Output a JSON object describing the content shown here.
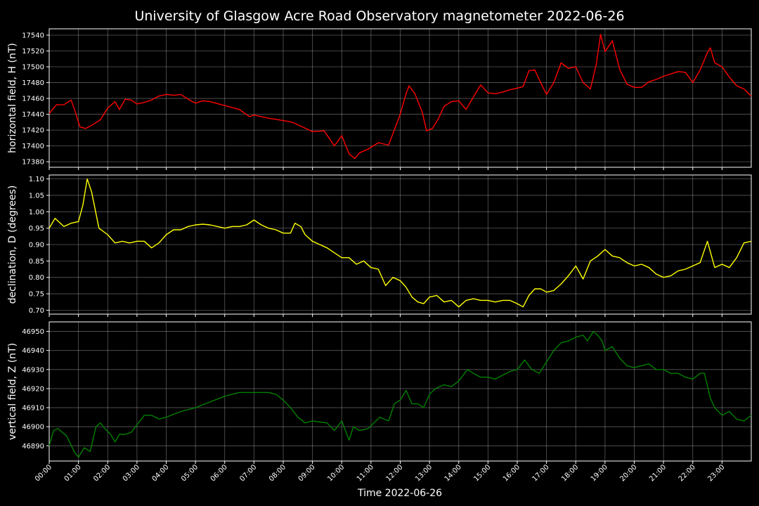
{
  "chart_data": {
    "type": "line",
    "title": "University of Glasgow Acre Road Observatory magnetometer 2022-06-26",
    "xlabel": "Time 2022-06-26",
    "x_tick_labels": [
      "00:00",
      "01:00",
      "02:00",
      "03:00",
      "04:00",
      "05:00",
      "06:00",
      "07:00",
      "08:00",
      "09:00",
      "10:00",
      "11:00",
      "12:00",
      "13:00",
      "14:00",
      "15:00",
      "16:00",
      "17:00",
      "18:00",
      "19:00",
      "20:00",
      "21:00",
      "22:00",
      "23:00"
    ],
    "x_unit": "hours",
    "xlim": [
      0,
      24
    ],
    "grid": true,
    "panels": [
      {
        "ylabel": "horizontal field, H (nT)",
        "color": "#ff0000",
        "ylim": [
          17373,
          17548
        ],
        "yticks": [
          17380,
          17400,
          17420,
          17440,
          17460,
          17480,
          17500,
          17520,
          17540
        ],
        "tick_decimals": 0,
        "x": [
          0,
          0.25,
          0.5,
          0.75,
          0.9,
          1.05,
          1.25,
          1.5,
          1.75,
          2.0,
          2.25,
          2.4,
          2.6,
          2.8,
          3.0,
          3.25,
          3.5,
          3.75,
          4.0,
          4.25,
          4.5,
          4.75,
          5.0,
          5.25,
          5.5,
          6.0,
          6.5,
          6.85,
          7.0,
          7.5,
          8.0,
          8.3,
          8.6,
          9.0,
          9.4,
          9.75,
          10.0,
          10.25,
          10.45,
          10.6,
          10.9,
          11.25,
          11.6,
          12.0,
          12.2,
          12.3,
          12.5,
          12.75,
          12.9,
          13.1,
          13.3,
          13.5,
          13.75,
          14.0,
          14.25,
          14.5,
          14.75,
          15.0,
          15.25,
          15.5,
          15.75,
          16.0,
          16.2,
          16.4,
          16.6,
          16.75,
          17.0,
          17.25,
          17.5,
          17.75,
          18.0,
          18.25,
          18.5,
          18.7,
          18.85,
          19.0,
          19.25,
          19.5,
          19.75,
          20.0,
          20.25,
          20.5,
          20.75,
          21.0,
          21.25,
          21.5,
          21.75,
          22.0,
          22.25,
          22.5,
          22.6,
          22.75,
          23.0,
          23.25,
          23.5,
          23.75,
          24.0
        ],
        "y": [
          17441,
          17452,
          17452,
          17458,
          17442,
          17424,
          17422,
          17427,
          17433,
          17448,
          17456,
          17446,
          17459,
          17458,
          17453,
          17455,
          17458,
          17463,
          17465,
          17464,
          17465,
          17459,
          17454,
          17457,
          17456,
          17451,
          17446,
          17437,
          17439,
          17435,
          17432,
          17430,
          17425,
          17418,
          17419,
          17400,
          17413,
          17390,
          17384,
          17391,
          17396,
          17404,
          17401,
          17440,
          17466,
          17476,
          17466,
          17443,
          17419,
          17422,
          17434,
          17450,
          17456,
          17457,
          17446,
          17462,
          17477,
          17467,
          17466,
          17468,
          17471,
          17473,
          17475,
          17495,
          17496,
          17484,
          17465,
          17480,
          17505,
          17498,
          17500,
          17480,
          17472,
          17503,
          17541,
          17519,
          17533,
          17497,
          17478,
          17474,
          17474,
          17481,
          17484,
          17488,
          17491,
          17494,
          17493,
          17480,
          17496,
          17518,
          17524,
          17505,
          17500,
          17487,
          17476,
          17472,
          17463
        ]
      },
      {
        "ylabel": "declination, D (degrees)",
        "color": "#ffff00",
        "ylim": [
          0.688,
          1.112
        ],
        "yticks": [
          0.7,
          0.75,
          0.8,
          0.85,
          0.9,
          0.95,
          1.0,
          1.05,
          1.1
        ],
        "tick_decimals": 2,
        "x": [
          0,
          0.2,
          0.5,
          0.75,
          1.0,
          1.15,
          1.3,
          1.45,
          1.7,
          2.0,
          2.25,
          2.5,
          2.75,
          3.0,
          3.25,
          3.5,
          3.75,
          4.0,
          4.25,
          4.5,
          4.75,
          5.0,
          5.25,
          5.5,
          5.75,
          6.0,
          6.25,
          6.5,
          6.75,
          7.0,
          7.25,
          7.5,
          7.75,
          8.0,
          8.25,
          8.4,
          8.6,
          8.75,
          9.0,
          9.25,
          9.5,
          9.75,
          10.0,
          10.25,
          10.5,
          10.75,
          11.0,
          11.25,
          11.5,
          11.75,
          12.0,
          12.2,
          12.4,
          12.6,
          12.8,
          13.0,
          13.25,
          13.5,
          13.75,
          14.0,
          14.25,
          14.5,
          14.75,
          15.0,
          15.25,
          15.5,
          15.75,
          16.0,
          16.2,
          16.4,
          16.6,
          16.8,
          17.0,
          17.25,
          17.5,
          17.75,
          18.0,
          18.25,
          18.5,
          18.75,
          19.0,
          19.25,
          19.5,
          19.75,
          20.0,
          20.25,
          20.5,
          20.75,
          21.0,
          21.25,
          21.5,
          21.75,
          22.0,
          22.25,
          22.5,
          22.75,
          23.0,
          23.25,
          23.5,
          23.75,
          24.0
        ],
        "y": [
          0.95,
          0.98,
          0.955,
          0.965,
          0.97,
          1.02,
          1.1,
          1.06,
          0.95,
          0.93,
          0.905,
          0.91,
          0.905,
          0.91,
          0.91,
          0.89,
          0.905,
          0.93,
          0.945,
          0.945,
          0.955,
          0.96,
          0.962,
          0.96,
          0.955,
          0.95,
          0.955,
          0.955,
          0.96,
          0.975,
          0.96,
          0.95,
          0.945,
          0.935,
          0.935,
          0.965,
          0.955,
          0.93,
          0.91,
          0.9,
          0.89,
          0.875,
          0.86,
          0.86,
          0.84,
          0.85,
          0.83,
          0.825,
          0.775,
          0.8,
          0.79,
          0.77,
          0.74,
          0.725,
          0.72,
          0.74,
          0.745,
          0.725,
          0.73,
          0.71,
          0.73,
          0.735,
          0.73,
          0.73,
          0.725,
          0.73,
          0.73,
          0.72,
          0.71,
          0.745,
          0.765,
          0.765,
          0.755,
          0.76,
          0.78,
          0.805,
          0.835,
          0.795,
          0.85,
          0.865,
          0.885,
          0.865,
          0.86,
          0.845,
          0.835,
          0.84,
          0.83,
          0.81,
          0.8,
          0.805,
          0.82,
          0.825,
          0.835,
          0.845,
          0.91,
          0.83,
          0.84,
          0.83,
          0.86,
          0.905,
          0.91
        ]
      },
      {
        "ylabel": "vertical field, Z (nT)",
        "color": "#008000",
        "ylim": [
          46882,
          46955
        ],
        "yticks": [
          46890,
          46900,
          46910,
          46920,
          46930,
          46940,
          46950
        ],
        "tick_decimals": 0,
        "x": [
          0,
          0.15,
          0.3,
          0.6,
          0.85,
          1.0,
          1.2,
          1.4,
          1.6,
          1.75,
          1.9,
          2.1,
          2.25,
          2.4,
          2.6,
          2.8,
          3.0,
          3.25,
          3.5,
          3.75,
          4.0,
          4.5,
          5.0,
          5.5,
          6.0,
          6.5,
          7.0,
          7.5,
          7.75,
          8.0,
          8.25,
          8.5,
          8.75,
          9.0,
          9.5,
          9.75,
          10.0,
          10.25,
          10.4,
          10.6,
          10.9,
          11.1,
          11.3,
          11.6,
          11.8,
          12.0,
          12.2,
          12.4,
          12.6,
          12.8,
          13.0,
          13.2,
          13.5,
          13.75,
          14.0,
          14.3,
          14.5,
          14.75,
          15.0,
          15.25,
          15.5,
          15.75,
          16.0,
          16.25,
          16.5,
          16.75,
          17.0,
          17.25,
          17.5,
          17.75,
          18.0,
          18.25,
          18.4,
          18.6,
          18.75,
          18.9,
          19.0,
          19.25,
          19.5,
          19.75,
          20.0,
          20.25,
          20.5,
          20.75,
          21.0,
          21.25,
          21.5,
          21.75,
          22.0,
          22.25,
          22.4,
          22.6,
          22.75,
          23.0,
          23.25,
          23.5,
          23.75,
          24.0
        ],
        "y": [
          46890,
          46898,
          46899,
          46895,
          46887,
          46884,
          46889,
          46887,
          46900,
          46902,
          46899,
          46896,
          46892,
          46896,
          46896,
          46897,
          46901,
          46906,
          46906,
          46904,
          46905,
          46908,
          46910,
          46913,
          46916,
          46918,
          46918,
          46918,
          46917,
          46914,
          46910,
          46905,
          46902,
          46903,
          46902,
          46898,
          46903,
          46893,
          46900,
          46898,
          46899,
          46902,
          46905,
          46903,
          46912,
          46914,
          46919,
          46912,
          46912,
          46910,
          46917,
          46920,
          46922,
          46921,
          46924,
          46930,
          46928,
          46926,
          46926,
          46925,
          46927,
          46929,
          46930,
          46935,
          46930,
          46928,
          46934,
          46940,
          46944,
          46945,
          46947,
          46948,
          46945,
          46950,
          46948,
          46945,
          46940,
          46942,
          46936,
          46932,
          46931,
          46932,
          46933,
          46930,
          46930,
          46928,
          46928,
          46926,
          46925,
          46928,
          46928,
          46915,
          46910,
          46906,
          46908,
          46904,
          46903,
          46906
        ]
      }
    ]
  }
}
